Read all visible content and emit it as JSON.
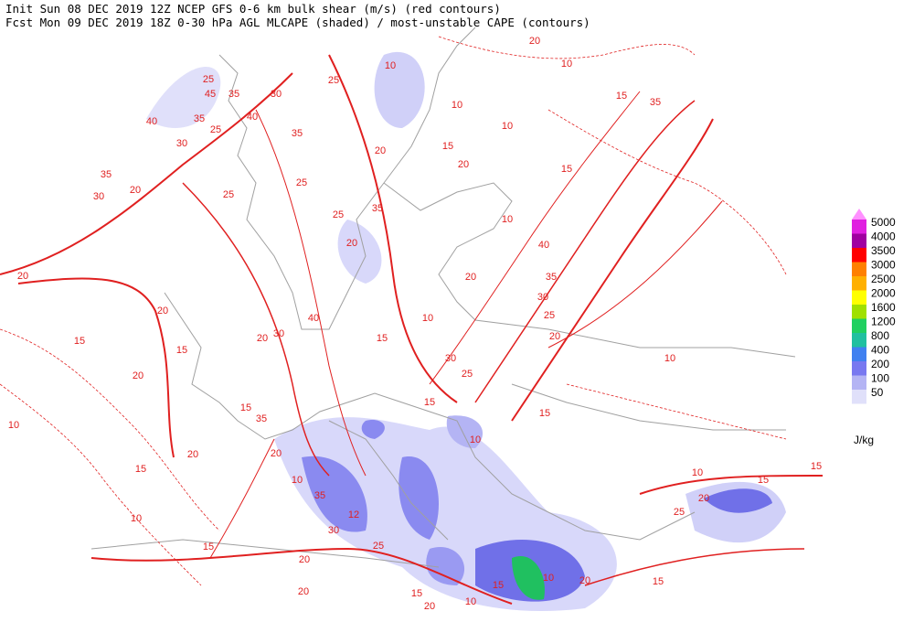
{
  "header": {
    "line1": "Init  Sun 08 DEC 2019 12Z  NCEP GFS 0-6 km bulk shear (m/s) (red contours)",
    "line2": "Fcst Mon 09 DEC 2019 18Z  0-30 hPa AGL MLCAPE (shaded) / most-unstable CAPE (contours)"
  },
  "colorbar": {
    "unit": "J/kg",
    "levels": [
      {
        "label": "5000",
        "color": "#e020e0"
      },
      {
        "label": "4000",
        "color": "#a000a0"
      },
      {
        "label": "3500",
        "color": "#ff0000"
      },
      {
        "label": "3000",
        "color": "#ff8000"
      },
      {
        "label": "2500",
        "color": "#ffb000"
      },
      {
        "label": "2000",
        "color": "#ffff00"
      },
      {
        "label": "1600",
        "color": "#a0e000"
      },
      {
        "label": "1200",
        "color": "#20d060"
      },
      {
        "label": "800",
        "color": "#20c0a0"
      },
      {
        "label": "400",
        "color": "#4080f0"
      },
      {
        "label": "200",
        "color": "#7878f0"
      },
      {
        "label": "100",
        "color": "#b4b4f4"
      },
      {
        "label": "50",
        "color": "#e0e0fa"
      }
    ]
  },
  "contour_labels": [
    "10",
    "25",
    "25",
    "45",
    "35",
    "30",
    "40",
    "40",
    "35",
    "25",
    "30",
    "35",
    "20",
    "30",
    "35",
    "25",
    "25",
    "25",
    "20",
    "35",
    "20",
    "15",
    "20",
    "10",
    "10",
    "10",
    "20",
    "15",
    "35",
    "15",
    "10",
    "40",
    "35",
    "30",
    "25",
    "20",
    "20",
    "10",
    "15",
    "30",
    "25",
    "15",
    "10",
    "20",
    "20",
    "15",
    "20",
    "15",
    "10",
    "20",
    "15",
    "10",
    "15",
    "20",
    "30",
    "40",
    "35",
    "15",
    "20",
    "10",
    "35",
    "12",
    "30",
    "25",
    "20",
    "20",
    "15",
    "20",
    "10",
    "15",
    "10",
    "20",
    "15",
    "20",
    "25",
    "10",
    "10",
    "15",
    "15",
    "15"
  ]
}
